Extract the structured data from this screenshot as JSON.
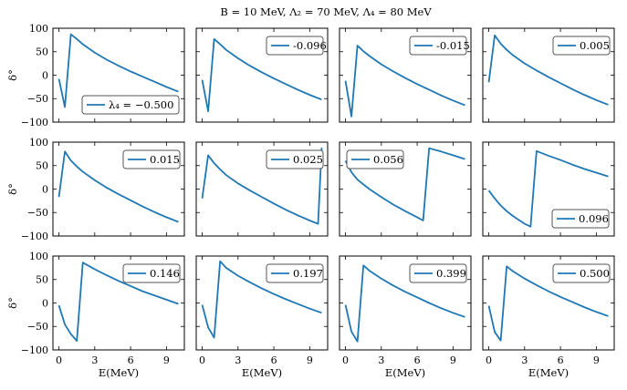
{
  "title": "B = 10 MeV, Λ₂ = 70 MeV, Λ₄ = 80 MeV",
  "colors": {
    "line": "#1f77b4",
    "axis": "#000000",
    "legend_edge": "#555555",
    "background": "#ffffff"
  },
  "chart_data": {
    "type": "line",
    "layout": "3x4 grid of subplots, shared x-axis (E) and shared y-axis (δ°)",
    "xlabel": "E(MeV)",
    "ylabel": "δ°",
    "xlim": [
      -0.5,
      10.5
    ],
    "ylim": [
      -100,
      100
    ],
    "xticks": [
      0,
      3,
      6,
      9
    ],
    "yticks": [
      -100,
      -50,
      0,
      50,
      100
    ],
    "panels": [
      {
        "legend": "λ₄ = −0.500",
        "legend_loc": "lower-right",
        "x": [
          0,
          0.5,
          1.0,
          1.5,
          2.0,
          3.0,
          4.0,
          5.0,
          6.0,
          7.0,
          8.0,
          9.0,
          10.0
        ],
        "y": [
          -8,
          -68,
          87,
          77,
          66,
          48,
          33,
          20,
          8,
          -3,
          -14,
          -25,
          -35
        ]
      },
      {
        "legend": "-0.096",
        "legend_loc": "upper-right",
        "x": [
          0,
          0.5,
          1.0,
          1.5,
          2.0,
          3.0,
          4.0,
          5.0,
          6.0,
          7.0,
          8.0,
          9.0,
          10.0
        ],
        "y": [
          -10,
          -77,
          77,
          66,
          54,
          36,
          20,
          6,
          -7,
          -19,
          -31,
          -42,
          -52
        ]
      },
      {
        "legend": "-0.015",
        "legend_loc": "upper-right",
        "x": [
          0,
          0.5,
          1.0,
          1.5,
          2.0,
          3.0,
          4.0,
          5.0,
          6.0,
          7.0,
          8.0,
          9.0,
          10.0
        ],
        "y": [
          -12,
          -88,
          63,
          51,
          41,
          23,
          8,
          -6,
          -19,
          -31,
          -43,
          -54,
          -64
        ]
      },
      {
        "legend": "0.005",
        "legend_loc": "upper-right",
        "x": [
          0,
          0.5,
          1.0,
          1.5,
          2.0,
          3.0,
          4.0,
          5.0,
          6.0,
          7.0,
          8.0,
          9.0,
          10.0
        ],
        "y": [
          -15,
          85,
          67,
          54,
          43,
          25,
          10,
          -4,
          -17,
          -30,
          -42,
          -53,
          -63
        ]
      },
      {
        "legend": "0.015",
        "legend_loc": "upper-right",
        "x": [
          0,
          0.5,
          1.0,
          1.5,
          2.0,
          3.0,
          4.0,
          5.0,
          6.0,
          7.0,
          8.0,
          9.0,
          10.0
        ],
        "y": [
          -17,
          80,
          61,
          48,
          37,
          19,
          3,
          -11,
          -24,
          -37,
          -49,
          -60,
          -70
        ]
      },
      {
        "legend": "0.025",
        "legend_loc": "upper-right",
        "x": [
          0,
          0.5,
          1.0,
          1.5,
          2.0,
          3.0,
          4.0,
          5.0,
          6.0,
          7.0,
          8.0,
          9.0,
          9.7,
          10.0
        ],
        "y": [
          -20,
          72,
          55,
          42,
          30,
          12,
          -3,
          -17,
          -31,
          -44,
          -56,
          -67,
          -74,
          88
        ]
      },
      {
        "legend": "0.056",
        "legend_loc": "upper-left",
        "x": [
          0,
          0.5,
          1.0,
          2.0,
          3.0,
          4.0,
          5.0,
          6.0,
          6.5,
          7.0,
          8.0,
          9.0,
          10.0
        ],
        "y": [
          60,
          36,
          20,
          0,
          -17,
          -33,
          -47,
          -60,
          -67,
          87,
          80,
          72,
          64
        ]
      },
      {
        "legend": "0.096",
        "legend_loc": "lower-right",
        "x": [
          0,
          0.5,
          1.0,
          1.5,
          2.0,
          3.0,
          3.5,
          4.0,
          5.0,
          6.0,
          7.0,
          8.0,
          9.0,
          10.0
        ],
        "y": [
          -3,
          -20,
          -35,
          -47,
          -57,
          -74,
          -80,
          81,
          71,
          62,
          52,
          43,
          35,
          27
        ]
      },
      {
        "legend": "0.146",
        "legend_loc": "upper-right",
        "x": [
          0,
          0.5,
          1.0,
          1.5,
          2.0,
          3.0,
          4.0,
          5.0,
          6.0,
          7.0,
          8.0,
          9.0,
          10.0
        ],
        "y": [
          -5,
          -46,
          -66,
          -81,
          86,
          72,
          59,
          47,
          36,
          25,
          16,
          7,
          -2
        ]
      },
      {
        "legend": "0.197",
        "legend_loc": "upper-right",
        "x": [
          0,
          0.5,
          1.0,
          1.5,
          2.0,
          3.0,
          4.0,
          5.0,
          6.0,
          7.0,
          8.0,
          9.0,
          10.0
        ],
        "y": [
          -4,
          -52,
          -74,
          89,
          75,
          58,
          44,
          31,
          19,
          8,
          -2,
          -12,
          -21
        ]
      },
      {
        "legend": "0.399",
        "legend_loc": "upper-right",
        "x": [
          0,
          0.5,
          1.0,
          1.5,
          2.0,
          3.0,
          4.0,
          5.0,
          6.0,
          7.0,
          8.0,
          9.0,
          10.0
        ],
        "y": [
          -4,
          -61,
          -82,
          80,
          69,
          52,
          37,
          24,
          12,
          0,
          -11,
          -21,
          -30
        ]
      },
      {
        "legend": "0.500",
        "legend_loc": "upper-right",
        "x": [
          0,
          0.5,
          1.0,
          1.5,
          2.0,
          3.0,
          4.0,
          5.0,
          6.0,
          7.0,
          8.0,
          9.0,
          10.0
        ],
        "y": [
          -6,
          -62,
          -80,
          78,
          68,
          52,
          38,
          25,
          13,
          2,
          -9,
          -19,
          -28
        ]
      }
    ]
  }
}
